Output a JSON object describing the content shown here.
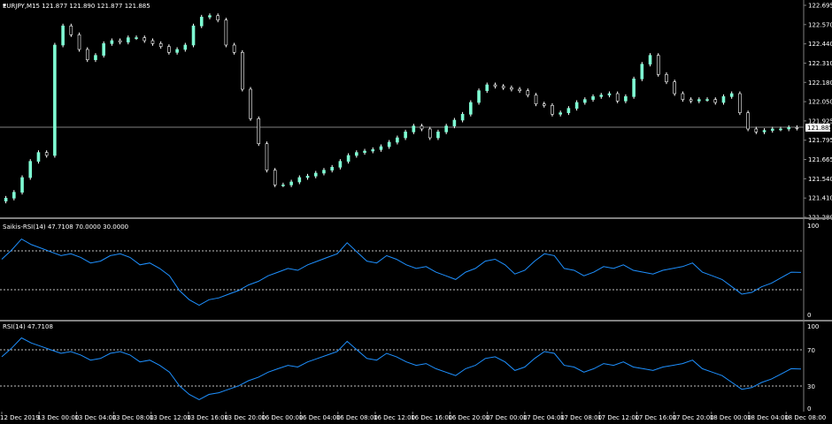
{
  "main": {
    "header": "EURJPY,M15  121.877 121.890 121.877 121.885",
    "price_axis": [
      "122.695",
      "122.570",
      "122.440",
      "122.310",
      "122.180",
      "122.050",
      "121.925",
      "121.795",
      "121.665",
      "121.540",
      "121.410",
      "121.280"
    ],
    "current_price": "121.885"
  },
  "saikis": {
    "header": "Saikis-RSI(14) 47.7108 70.0000 30.0000",
    "axis": [
      "100",
      "0"
    ]
  },
  "rsi": {
    "header": "RSI(14) 47.7108",
    "axis": [
      "100",
      "70",
      "30",
      "0"
    ]
  },
  "time_axis": [
    "12 Dec 2019",
    "13 Dec 00:00",
    "13 Dec 04:00",
    "13 Dec 08:00",
    "13 Dec 12:00",
    "13 Dec 16:00",
    "13 Dec 20:00",
    "16 Dec 00:00",
    "16 Dec 04:00",
    "16 Dec 08:00",
    "16 Dec 12:00",
    "16 Dec 16:00",
    "16 Dec 20:00",
    "17 Dec 00:00",
    "17 Dec 04:00",
    "17 Dec 08:00",
    "17 Dec 12:00",
    "17 Dec 16:00",
    "17 Dec 20:00",
    "18 Dec 00:00",
    "18 Dec 04:00",
    "18 Dec 08:00"
  ],
  "colors": {
    "background": "#000000",
    "candle": "#7fffd4",
    "wick": "#ffffff",
    "indicator": "#1e90ff",
    "grid": "#c0c0c0",
    "separator": "#808080"
  },
  "chart_data": [
    {
      "type": "candlestick",
      "series_name": "EURJPY,M15",
      "ylim": [
        121.28,
        122.72
      ],
      "close_series": [
        121.41,
        121.45,
        121.55,
        121.66,
        121.72,
        121.7,
        122.45,
        122.58,
        122.52,
        122.42,
        122.35,
        122.38,
        122.46,
        122.48,
        122.47,
        122.5,
        122.5,
        122.48,
        122.46,
        122.44,
        122.4,
        122.42,
        122.45,
        122.58,
        122.64,
        122.65,
        122.62,
        122.45,
        122.4,
        122.15,
        121.95,
        121.78,
        121.6,
        121.5,
        121.5,
        121.52,
        121.55,
        121.56,
        121.58,
        121.6,
        121.62,
        121.66,
        121.7,
        121.72,
        121.73,
        121.74,
        121.76,
        121.79,
        121.82,
        121.86,
        121.9,
        121.88,
        121.82,
        121.86,
        121.9,
        121.94,
        121.98,
        122.06,
        122.14,
        122.18,
        122.17,
        122.16,
        122.15,
        122.14,
        122.11,
        122.05,
        122.04,
        121.98,
        121.99,
        122.02,
        122.06,
        122.08,
        122.1,
        122.11,
        122.12,
        122.07,
        122.1,
        122.22,
        122.32,
        122.38,
        122.25,
        122.2,
        122.12,
        122.08,
        122.07,
        122.08,
        122.08,
        122.06,
        122.1,
        122.12,
        121.99,
        121.88,
        121.86,
        121.87,
        121.88,
        121.88,
        121.89,
        121.885
      ],
      "rsi_series": [
        62,
        72,
        84,
        78,
        74,
        70,
        66,
        68,
        64,
        58,
        60,
        66,
        68,
        64,
        56,
        58,
        52,
        44,
        28,
        18,
        12,
        18,
        20,
        24,
        28,
        34,
        38,
        44,
        48,
        52,
        50,
        56,
        60,
        64,
        68,
        80,
        70,
        60,
        58,
        66,
        62,
        56,
        52,
        54,
        48,
        44,
        40,
        48,
        52,
        60,
        62,
        56,
        46,
        50,
        60,
        68,
        66,
        52,
        50,
        44,
        48,
        54,
        52,
        56,
        50,
        48,
        46,
        50,
        52,
        54,
        58,
        48,
        44,
        40,
        32,
        24,
        26,
        32,
        36,
        42,
        48,
        47.71
      ],
      "saikis_levels": [
        70,
        30
      ],
      "rsi_levels": [
        70,
        30
      ]
    }
  ]
}
